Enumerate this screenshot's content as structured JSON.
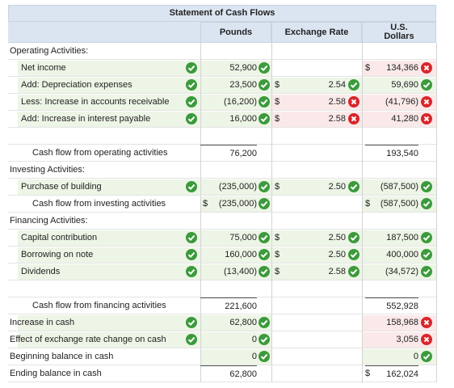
{
  "header": {
    "title": "Statement of Cash Flows",
    "columns": [
      "Pounds",
      "Exchange Rate",
      "U.S. Dollars"
    ]
  },
  "rows": [
    {
      "label": "Operating Activities:"
    },
    {
      "label": "Net income",
      "pounds": "52,900",
      "usd_symbol": "$",
      "usd": "134,366"
    },
    {
      "label": "Add: Depreciation expenses",
      "pounds": "23,500",
      "rate_symbol": "$",
      "rate": "2.54",
      "usd": "59,690"
    },
    {
      "label": "Less: Increase in accounts receivable",
      "pounds": "(16,200)",
      "rate_symbol": "$",
      "rate": "2.58",
      "usd": "(41,796)"
    },
    {
      "label": "Add: Increase in interest payable",
      "pounds": "16,000",
      "rate_symbol": "$",
      "rate": "2.58",
      "usd": "41,280"
    },
    {
      "label": "Cash flow from operating activities",
      "pounds": "76,200",
      "usd": "193,540"
    },
    {
      "label": "Investing Activities:"
    },
    {
      "label": "Purchase of building",
      "pounds": "(235,000)",
      "rate_symbol": "$",
      "rate": "2.50",
      "usd": "(587,500)"
    },
    {
      "label": "Cash flow from investing activities",
      "pounds_symbol": "$",
      "pounds": "(235,000)",
      "usd_symbol": "$",
      "usd": "(587,500)"
    },
    {
      "label": "Financing Activities:"
    },
    {
      "label": "Capital contribution",
      "pounds": "75,000",
      "rate_symbol": "$",
      "rate": "2.50",
      "usd": "187,500"
    },
    {
      "label": "Borrowing on note",
      "pounds": "160,000",
      "rate_symbol": "$",
      "rate": "2.50",
      "usd": "400,000"
    },
    {
      "label": "Dividends",
      "pounds": "(13,400)",
      "rate_symbol": "$",
      "rate": "2.58",
      "usd": "(34,572)"
    },
    {
      "label": "Cash flow from financing activities",
      "pounds": "221,600",
      "usd": "552,928"
    },
    {
      "label": "Increase in cash",
      "pounds": "62,800",
      "usd": "158,968"
    },
    {
      "label": "Effect of exchange rate change on cash",
      "pounds": "0",
      "usd": "3,056"
    },
    {
      "label": "Beginning balance in cash",
      "pounds": "0",
      "usd": "0"
    },
    {
      "label": "Ending balance in cash",
      "pounds": "62,800",
      "usd_symbol": "$",
      "usd": "162,024"
    }
  ]
}
